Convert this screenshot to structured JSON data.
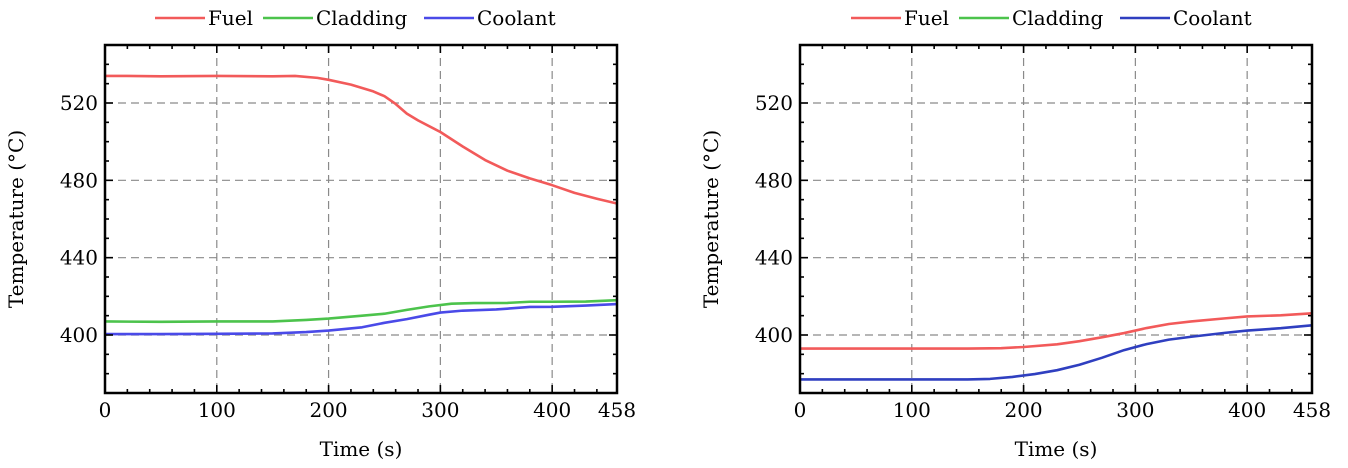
{
  "chart_data": [
    {
      "type": "line",
      "xlabel": "Time (s)",
      "ylabel": "Temperature (°C)",
      "xlim": [
        0,
        458
      ],
      "ylim": [
        370,
        550
      ],
      "xticks": [
        0,
        100,
        200,
        300,
        400,
        458
      ],
      "yticks": [
        400,
        440,
        480,
        520
      ],
      "grid": true,
      "legend_position": "top-center",
      "series": [
        {
          "name": "Fuel",
          "color": "#f25a5a",
          "x": [
            0,
            20,
            50,
            100,
            150,
            170,
            190,
            200,
            220,
            240,
            250,
            260,
            270,
            280,
            300,
            320,
            340,
            360,
            380,
            400,
            420,
            440,
            458
          ],
          "y": [
            534,
            534,
            533.8,
            534,
            533.8,
            534,
            533,
            532,
            529.5,
            526,
            523.5,
            519.5,
            514.5,
            511,
            505,
            497.5,
            490.5,
            485,
            481,
            477.5,
            473.5,
            470.5,
            468
          ]
        },
        {
          "name": "Cladding",
          "color": "#4cc34c",
          "x": [
            0,
            50,
            100,
            150,
            180,
            200,
            230,
            250,
            270,
            290,
            310,
            330,
            360,
            380,
            400,
            430,
            458
          ],
          "y": [
            407,
            406.8,
            407,
            407,
            407.8,
            408.5,
            410,
            411,
            413,
            414.8,
            416.2,
            416.5,
            416.6,
            417.2,
            417.2,
            417.3,
            418
          ]
        },
        {
          "name": "Coolant",
          "color": "#4a4ae8",
          "x": [
            0,
            50,
            100,
            150,
            180,
            200,
            230,
            250,
            270,
            290,
            300,
            320,
            350,
            380,
            400,
            430,
            458
          ],
          "y": [
            400.5,
            400.5,
            400.6,
            400.8,
            401.5,
            402.3,
            404,
            406.3,
            408.2,
            410.5,
            411.6,
            412.6,
            413.2,
            414.5,
            414.6,
            415.2,
            416
          ]
        }
      ]
    },
    {
      "type": "line",
      "xlabel": "Time (s)",
      "ylabel": "Temperature (°C)",
      "xlim": [
        0,
        458
      ],
      "ylim": [
        370,
        550
      ],
      "xticks": [
        0,
        100,
        200,
        300,
        400,
        458
      ],
      "yticks": [
        400,
        440,
        480,
        520
      ],
      "grid": true,
      "legend_position": "top-center",
      "series": [
        {
          "name": "Fuel",
          "color": "#f25a5a",
          "x": [
            0,
            50,
            100,
            150,
            180,
            200,
            230,
            250,
            270,
            290,
            310,
            330,
            350,
            380,
            400,
            430,
            458
          ],
          "y": [
            393,
            393,
            393,
            393,
            393.2,
            393.8,
            395.2,
            396.8,
            398.8,
            401,
            403.6,
            405.7,
            407,
            408.6,
            409.6,
            410.2,
            411.2
          ]
        },
        {
          "name": "Cladding",
          "color": "#4cc34c",
          "x": [],
          "y": []
        },
        {
          "name": "Coolant",
          "color": "#2f3fc0",
          "x": [
            0,
            50,
            100,
            150,
            170,
            190,
            210,
            230,
            250,
            270,
            290,
            310,
            330,
            350,
            380,
            400,
            430,
            458
          ],
          "y": [
            377,
            377,
            377,
            377,
            377.3,
            378.3,
            379.8,
            381.8,
            384.6,
            388.2,
            392.2,
            395.3,
            397.6,
            399.1,
            401.1,
            402.3,
            403.5,
            405
          ]
        }
      ]
    }
  ]
}
